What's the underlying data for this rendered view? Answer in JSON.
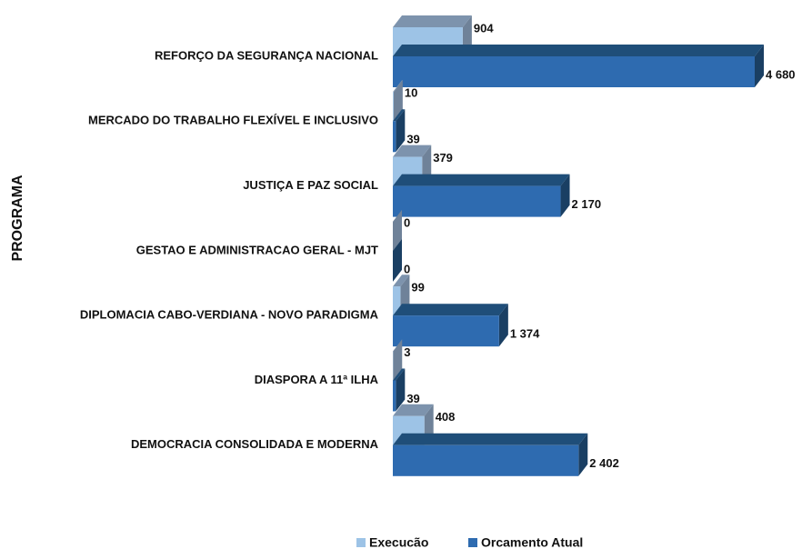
{
  "chart_data": {
    "type": "bar",
    "orientation": "horizontal",
    "y_label": "PROGRAMA",
    "categories": [
      "REFORÇO DA SEGURANÇA NACIONAL",
      "MERCADO DO TRABALHO FLEXÍVEL E INCLUSIVO",
      "JUSTIÇA E PAZ SOCIAL",
      "GESTAO E ADMINISTRACAO GERAL - MJT",
      "DIPLOMACIA CABO-VERDIANA - NOVO PARADIGMA",
      "DIASPORA A 11ª ILHA",
      "DEMOCRACIA CONSOLIDADA E MODERNA"
    ],
    "series": [
      {
        "name": "Execucão",
        "color": "#9dc3e6",
        "values": [
          904,
          10,
          379,
          0,
          99,
          3,
          408
        ]
      },
      {
        "name": "Orcamento Atual",
        "color": "#2e6bb0",
        "values": [
          4680,
          39,
          2170,
          0,
          1374,
          39,
          2402
        ],
        "value_labels": [
          "4 680",
          "39",
          "2 170",
          "0",
          "1 374",
          "39",
          "2 402"
        ]
      }
    ],
    "legend": "bottom"
  }
}
